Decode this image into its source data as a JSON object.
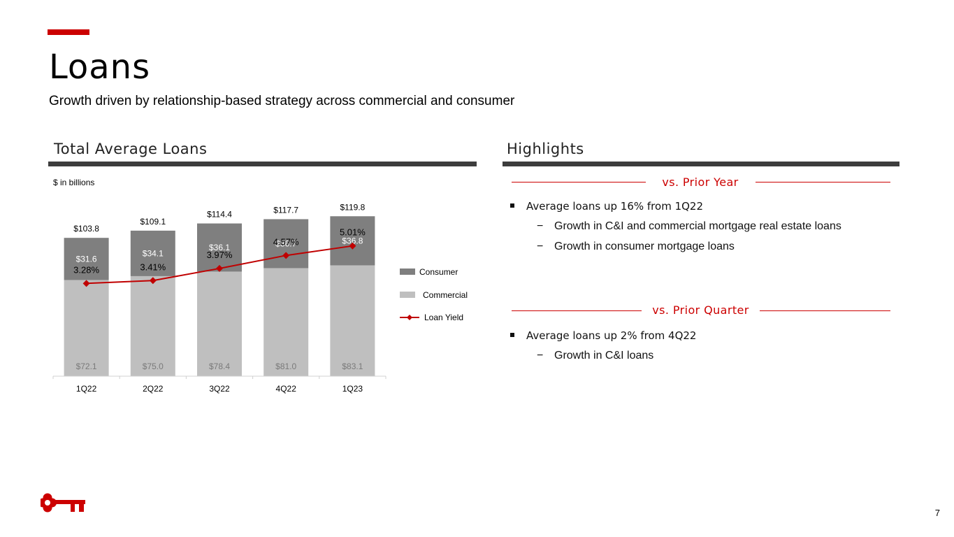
{
  "page": {
    "title": "Loans",
    "subtitle": "Growth driven by relationship-based strategy across commercial and consumer",
    "page_number": "7"
  },
  "left_section": {
    "title": "Total Average Loans",
    "units_note": "$ in billions"
  },
  "right_section": {
    "title": "Highlights",
    "groups": [
      {
        "heading": "vs. Prior Year",
        "bullet": "Average loans up 16% from 1Q22",
        "sub_bullets": [
          "Growth in C&I and commercial mortgage real estate loans",
          "Growth in consumer mortgage loans"
        ]
      },
      {
        "heading": "vs. Prior Quarter",
        "bullet": "Average loans up 2% from 4Q22",
        "sub_bullets": [
          "Growth in C&I loans"
        ]
      }
    ]
  },
  "colors": {
    "accent": "#cc0000",
    "consumer": "#7f7f7f",
    "commercial": "#bfbfbf",
    "loan_yield": "#c00000",
    "rule": "#3d3d3d"
  },
  "chart_data": {
    "type": "bar",
    "stacked": true,
    "title": "Total Average Loans",
    "ylabel": "$ in billions",
    "categories": [
      "1Q22",
      "2Q22",
      "3Q22",
      "4Q22",
      "1Q23"
    ],
    "totals": [
      "$103.8",
      "$109.1",
      "$114.4",
      "$117.7",
      "$119.8"
    ],
    "total_values": [
      103.8,
      109.1,
      114.4,
      117.7,
      119.8
    ],
    "series": [
      {
        "name": "Commercial",
        "values": [
          72.1,
          75.0,
          78.4,
          81.0,
          83.1
        ],
        "labels": [
          "$72.1",
          "$75.0",
          "$78.4",
          "$81.0",
          "$83.1"
        ]
      },
      {
        "name": "Consumer",
        "values": [
          31.6,
          34.1,
          36.1,
          36.7,
          36.8
        ],
        "labels": [
          "$31.6",
          "$34.1",
          "$36.1",
          "$36.7",
          "$36.8"
        ]
      }
    ],
    "line_series": {
      "name": "Loan Yield",
      "values": [
        3.28,
        3.41,
        3.97,
        4.57,
        5.01
      ],
      "labels": [
        "3.28%",
        "3.41%",
        "3.97%",
        "4.57%",
        "5.01%"
      ],
      "ylim": [
        -1,
        7
      ]
    },
    "ylim": [
      0,
      130
    ],
    "legend": [
      "Consumer",
      "Commercial",
      "Loan Yield"
    ]
  }
}
